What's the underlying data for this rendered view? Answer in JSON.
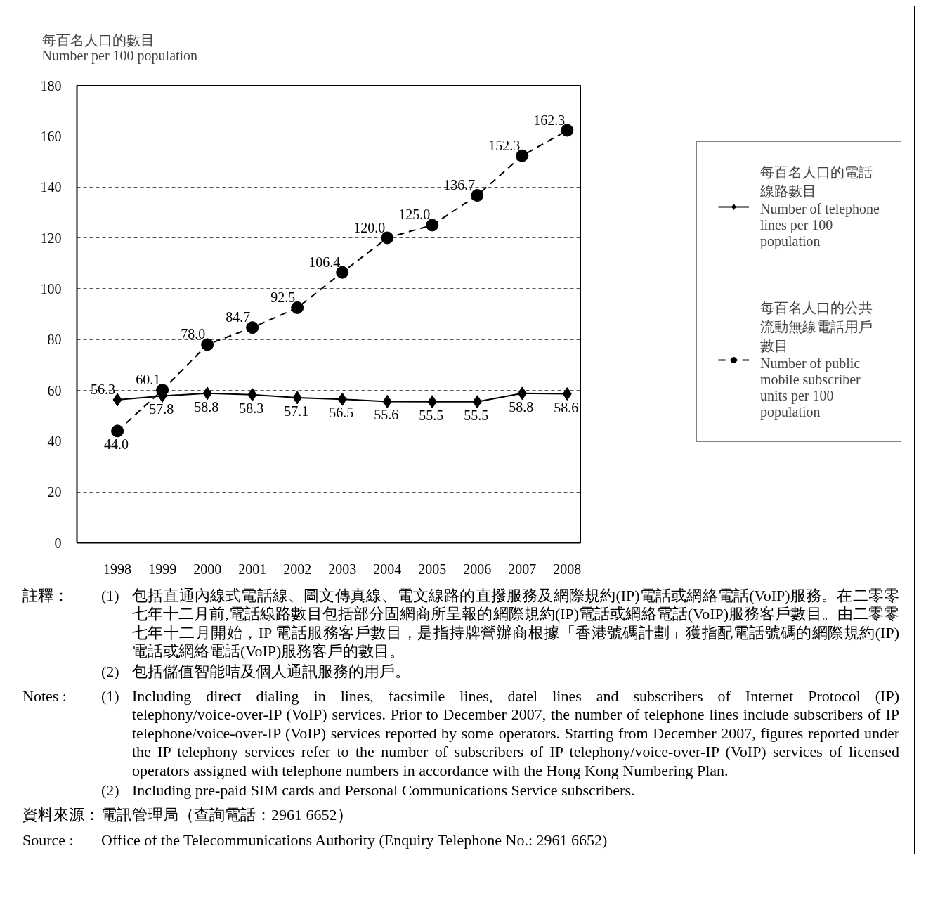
{
  "chart_data": {
    "type": "line",
    "ylabel": "每百名人口的數目\nNumber per 100 population",
    "categories": [
      "1998",
      "1999",
      "2000",
      "2001",
      "2002",
      "2003",
      "2004",
      "2005",
      "2006",
      "2007",
      "2008"
    ],
    "series": [
      {
        "name": "每百名人口的電話線路數目\nNumber of telephone lines per 100 population",
        "color": "#000000",
        "marker": "diamond",
        "line_style": "solid",
        "values": [
          56.3,
          57.8,
          58.8,
          58.3,
          57.1,
          56.5,
          55.6,
          55.5,
          55.5,
          58.8,
          58.6
        ],
        "value_labels": [
          "56.3",
          "57.8",
          "58.8",
          "58.3",
          "57.1",
          "56.5",
          "55.6",
          "55.5",
          "55.5",
          "58.8",
          "58.6"
        ]
      },
      {
        "name": "每百名人口的公共流動無線電話用戶數目\nNumber of public mobile subscriber units per 100 population",
        "color": "#000000",
        "marker": "circle",
        "line_style": "dashed",
        "values": [
          44.0,
          60.1,
          78.0,
          84.7,
          92.5,
          106.4,
          120.0,
          125.0,
          136.7,
          152.3,
          162.3
        ],
        "value_labels": [
          "44.0",
          "60.1",
          "78.0",
          "84.7",
          "92.5",
          "106.4",
          "120.0",
          "125.0",
          "136.7",
          "152.3",
          "162.3"
        ]
      }
    ],
    "ylim": [
      0,
      180
    ],
    "yticks": [
      0,
      20,
      40,
      60,
      80,
      100,
      120,
      140,
      160,
      180
    ],
    "grid": "y",
    "legend": "right",
    "annotations": [
      "註釋：\t(1)\t包括直通內線式電話線、圖文傳真線、電文線路的直撥服務及網際規約(IP)電話或網絡電話(VoIP)服務。在二零零七年十二月前,電話線路數目包括部分固網商所呈報的網際規約(IP)電話或網絡電話(VoIP)服務客戶數目。由二零零七年十二月開始，IP 電話服務客戶數目，是指持牌營辦商根據「香港號碼計劃」獲指配電話號碼的網際規約(IP)電話或網絡電話(VoIP)服務客戶的數目。",
      "\t(2)\t包括儲值智能咭及個人通訊服務的用戶。",
      "Notes :\t(1)\tIncluding direct dialing in lines, facsimile lines, datel lines and subscribers of Internet Protocol (IP) telephony/voice-over-IP (VoIP) services.  Prior to December 2007, the number of telephone lines include subscribers of IP telephone/voice-over-IP (VoIP) services reported by some operators.  Starting from December 2007, figures reported under the IP telephony services refer to the number of subscribers of IP telephony/voice-over-IP (VoIP) services of licensed operators assigned with telephone numbers in accordance with the Hong Kong Numbering Plan.",
      "\t(2)\tIncluding pre-paid SIM cards and Personal Communications Service subscribers.",
      "資料來源：\t電訊管理局（查詢電話：2961 6652）",
      "Source :\tOffice of the Telecommunications Authority (Enquiry Telephone No.: 2961 6652)"
    ]
  }
}
